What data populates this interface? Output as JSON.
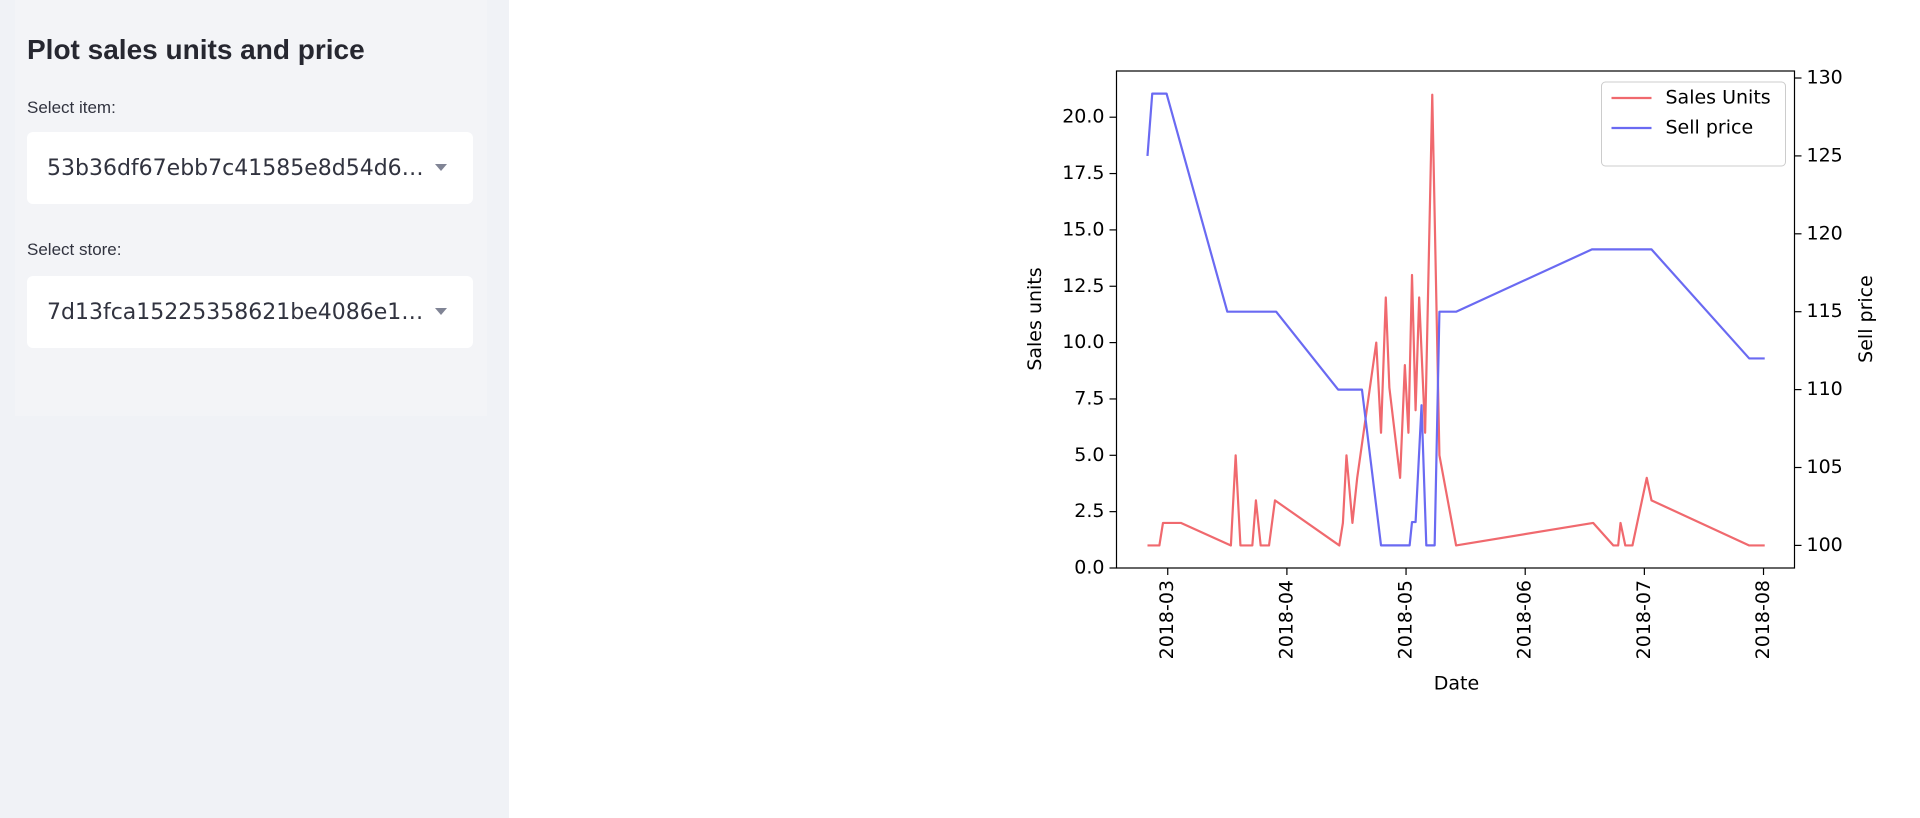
{
  "sidebar": {
    "title": "Plot sales units and price",
    "item_label": "Select item:",
    "item_value": "53b36df67ebb7c41585e8d54d6…",
    "store_label": "Select store:",
    "store_value": "7d13fca15225358621be4086e1…"
  },
  "chart_data": {
    "type": "line",
    "xlabel": "Date",
    "ylabel": "Sales units",
    "y2label": "Sell price",
    "xlim": [
      2.57,
      8.26
    ],
    "xticks": [
      {
        "value": 3,
        "label": "2018-03"
      },
      {
        "value": 4,
        "label": "2018-04"
      },
      {
        "value": 5,
        "label": "2018-05"
      },
      {
        "value": 6,
        "label": "2018-06"
      },
      {
        "value": 7,
        "label": "2018-07"
      },
      {
        "value": 8,
        "label": "2018-08"
      }
    ],
    "ylim": [
      0,
      22.05
    ],
    "yticks": [
      {
        "value": 0,
        "label": "0.0"
      },
      2.5,
      {
        "value": 5,
        "label": "5.0"
      },
      7.5,
      {
        "value": 10,
        "label": "10.0"
      },
      12.5,
      {
        "value": 15,
        "label": "15.0"
      },
      17.5,
      {
        "value": 20,
        "label": "20.0"
      }
    ],
    "y2lim": [
      98.55,
      130.45
    ],
    "y2ticks": [
      100,
      105,
      110,
      115,
      120,
      125,
      130
    ],
    "legend": "upper right",
    "series": [
      {
        "name": "Sales Units",
        "color": "#f0696e",
        "x": [
          2.83,
          2.93,
          2.96,
          3.11,
          3.53,
          3.57,
          3.61,
          3.71,
          3.74,
          3.78,
          3.85,
          3.9,
          4.44,
          4.47,
          4.5,
          4.55,
          4.59,
          4.75,
          4.79,
          4.83,
          4.86,
          4.95,
          4.99,
          5.02,
          5.05,
          5.08,
          5.11,
          5.16,
          5.22,
          5.28,
          5.42,
          6.57,
          6.74,
          6.78,
          6.8,
          6.84,
          6.9,
          7.02,
          7.06,
          7.88,
          8.01
        ],
        "values": [
          1,
          1,
          2,
          2,
          1,
          5,
          1,
          1,
          3,
          1,
          1,
          3,
          1,
          2,
          5,
          2,
          4,
          10,
          6,
          12,
          8,
          4,
          9,
          6,
          13,
          7,
          12,
          6,
          21,
          5,
          1,
          2,
          1,
          1,
          2,
          1,
          1,
          4,
          3,
          1,
          1
        ]
      },
      {
        "name": "Sell price",
        "color": "#6a6af2",
        "axis": "y2",
        "x": [
          2.83,
          2.87,
          2.99,
          3.5,
          3.91,
          4.43,
          4.63,
          4.79,
          5.03,
          5.05,
          5.08,
          5.13,
          5.17,
          5.24,
          5.28,
          5.42,
          6.56,
          7.06,
          7.88,
          8.01
        ],
        "values": [
          125,
          129,
          129,
          115,
          115,
          110,
          110,
          100,
          100,
          101.5,
          101.5,
          109,
          100,
          100,
          115,
          115,
          119,
          119,
          112,
          112
        ]
      }
    ]
  }
}
